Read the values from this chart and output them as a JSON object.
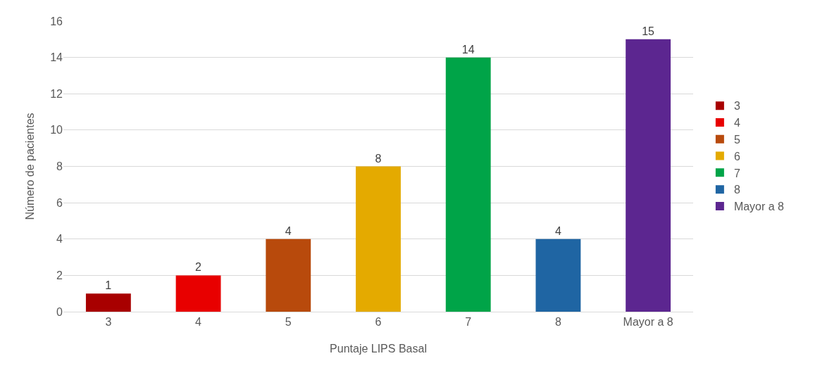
{
  "chart_data": {
    "type": "bar",
    "xlabel": "Puntaje LIPS Basal",
    "ylabel": "Número de pacientes",
    "categories": [
      "3",
      "4",
      "5",
      "6",
      "7",
      "8",
      "Mayor a 8"
    ],
    "series": [
      {
        "name": "3",
        "color": "#a80000",
        "values": [
          1,
          null,
          null,
          null,
          null,
          null,
          null
        ]
      },
      {
        "name": "4",
        "color": "#e80000",
        "values": [
          null,
          2,
          null,
          null,
          null,
          null,
          null
        ]
      },
      {
        "name": "5",
        "color": "#b84a0c",
        "values": [
          null,
          null,
          4,
          null,
          null,
          null,
          null
        ]
      },
      {
        "name": "6",
        "color": "#e4aa00",
        "values": [
          null,
          null,
          null,
          8,
          null,
          null,
          null
        ]
      },
      {
        "name": "7",
        "color": "#00a448",
        "values": [
          null,
          null,
          null,
          null,
          14,
          null,
          null
        ]
      },
      {
        "name": "8",
        "color": "#1f65a3",
        "values": [
          null,
          null,
          null,
          null,
          null,
          4,
          null
        ]
      },
      {
        "name": "Mayor a 8",
        "color": "#5c2690",
        "values": [
          null,
          null,
          null,
          null,
          null,
          null,
          15
        ]
      }
    ],
    "ylim": [
      0,
      16
    ],
    "yticks": [
      0,
      2,
      4,
      6,
      8,
      10,
      12,
      14,
      16
    ],
    "grid": "y",
    "legend": "right",
    "data_labels": true
  }
}
